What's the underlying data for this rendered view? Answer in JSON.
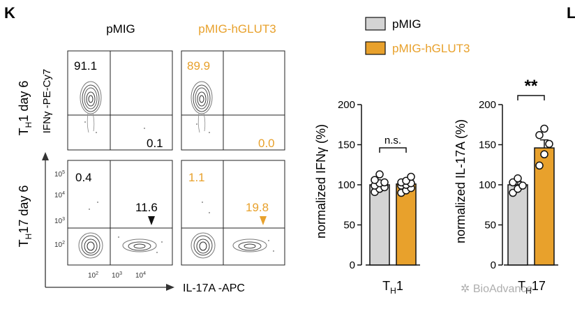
{
  "figure": {
    "panel_label_left": "K",
    "panel_label_right": "L",
    "colors": {
      "pmig": "#d4d4d4",
      "hglut3": "#e8a12c",
      "text": "#111111"
    },
    "flow": {
      "column_headers": [
        "pMIG",
        "pMIG-hGLUT3"
      ],
      "row_labels": [
        {
          "main": "T",
          "sub": "H",
          "rest": "1 day 6"
        },
        {
          "main": "T",
          "sub": "H",
          "rest": "17 day 6"
        }
      ],
      "y_axis_label": "IFNγ -PE-Cy7",
      "x_axis_label": "IL-17A -APC",
      "x_ticks": [
        {
          "base": "10",
          "exp": "2"
        },
        {
          "base": "10",
          "exp": "3"
        },
        {
          "base": "10",
          "exp": "4"
        }
      ],
      "y_ticks": [
        {
          "base": "10",
          "exp": "5"
        },
        {
          "base": "10",
          "exp": "4"
        },
        {
          "base": "10",
          "exp": "3"
        },
        {
          "base": "10",
          "exp": "2"
        }
      ],
      "quadrant_values": {
        "th1_pmig": {
          "upper_left": "91.1",
          "lower_right": "0.1"
        },
        "th1_hglut3": {
          "upper_left": "89.9",
          "lower_right": "0.0"
        },
        "th17_pmig": {
          "upper_left": "0.4",
          "lower_right": "11.6"
        },
        "th17_hglut3": {
          "upper_left": "1.1",
          "lower_right": "19.8"
        }
      }
    },
    "legend": {
      "items": [
        {
          "label": "pMIG",
          "color": "#d4d4d4"
        },
        {
          "label": "pMIG-hGLUT3",
          "color": "#e8a12c"
        }
      ]
    },
    "watermark": "BioAdvance"
  },
  "chart_data": [
    {
      "type": "bar",
      "title": "",
      "ylabel": "normalized IFNγ (%)",
      "xlabel": {
        "main": "T",
        "sub": "H",
        "rest": "1"
      },
      "categories": [
        "pMIG",
        "pMIG-hGLUT3"
      ],
      "values": [
        100,
        101
      ],
      "errors": [
        4,
        4
      ],
      "ylim": [
        0,
        200
      ],
      "yticks": [
        0,
        50,
        100,
        150,
        200
      ],
      "points": [
        [
          91,
          95,
          97,
          99,
          102,
          103,
          106,
          113
        ],
        [
          90,
          93,
          96,
          99,
          100,
          102,
          103,
          105,
          110
        ]
      ],
      "significance": "n.s."
    },
    {
      "type": "bar",
      "title": "",
      "ylabel": "normalized IL-17A (%)",
      "xlabel": {
        "main": "T",
        "sub": "H",
        "rest": "17"
      },
      "categories": [
        "pMIG",
        "pMIG-hGLUT3"
      ],
      "values": [
        100,
        146
      ],
      "errors": [
        4,
        10
      ],
      "ylim": [
        0,
        200
      ],
      "yticks": [
        0,
        50,
        100,
        150,
        200
      ],
      "points": [
        [
          90,
          95,
          99,
          103,
          108
        ],
        [
          124,
          138,
          151,
          162,
          170
        ]
      ],
      "significance": "**"
    }
  ]
}
